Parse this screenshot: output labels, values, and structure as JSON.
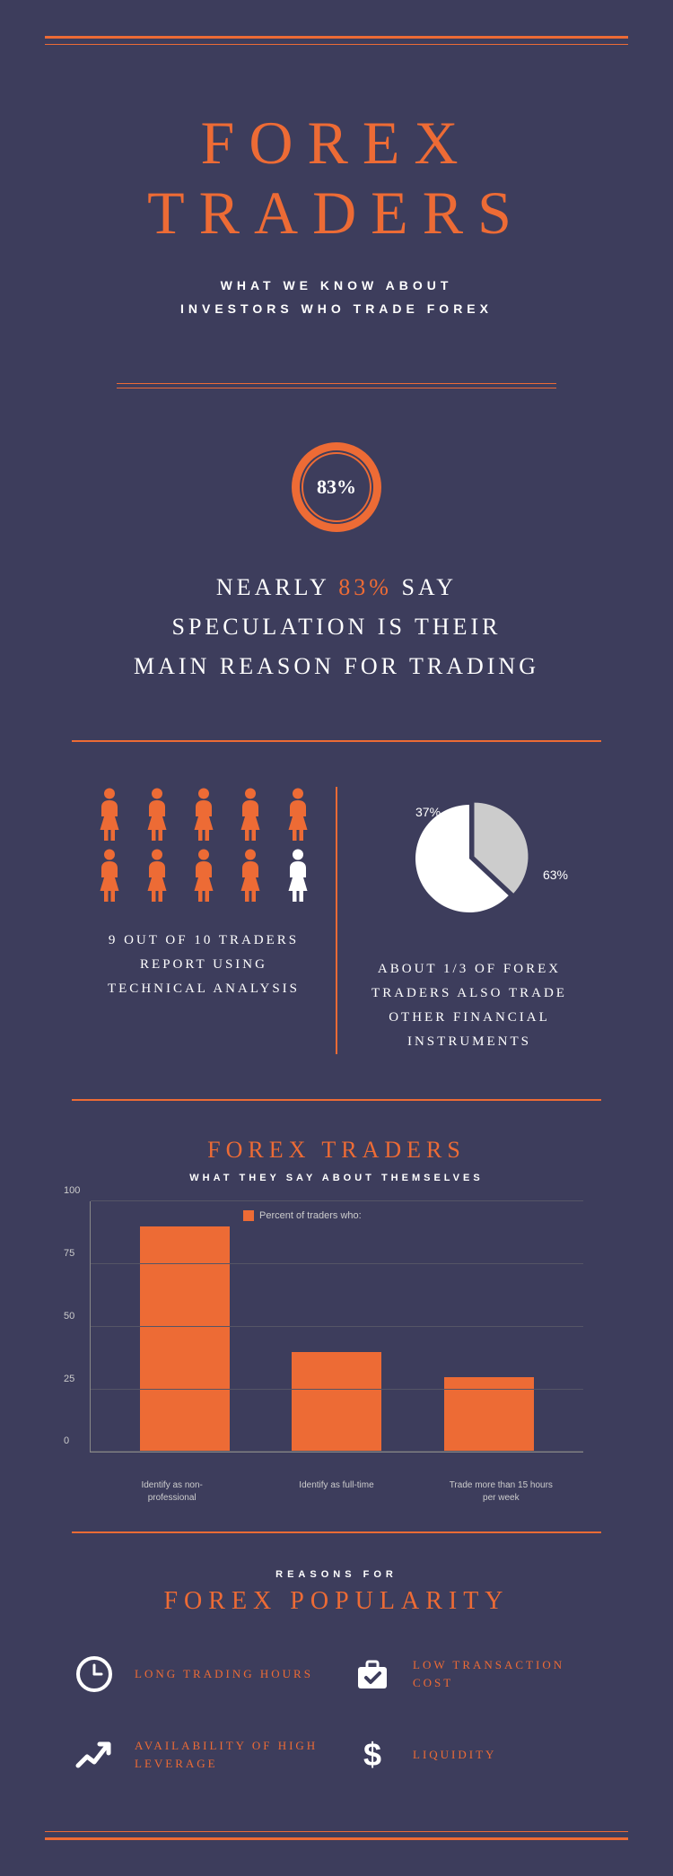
{
  "colors": {
    "background": "#3d3d5c",
    "accent": "#ed6b35",
    "text": "#ffffff",
    "muted": "#cccccc",
    "pie_light": "#cccccc",
    "pie_main": "#ffffff",
    "grid": "#555566"
  },
  "header": {
    "title": "FOREX TRADERS",
    "subtitle_line1": "WHAT WE KNOW ABOUT",
    "subtitle_line2": "INVESTORS WHO TRADE FOREX"
  },
  "stat_circle": {
    "value": "83%"
  },
  "stat1": {
    "line1_pre": "NEARLY ",
    "line1_highlight": "83%",
    "line1_post": " SAY",
    "line2": "SPECULATION IS THEIR",
    "line3": "MAIN REASON FOR TRADING"
  },
  "people": {
    "total": 10,
    "filled": 9,
    "fill_color": "#ed6b35",
    "empty_color": "#ffffff",
    "caption": "9 OUT OF 10 TRADERS REPORT USING TECHNICAL ANALYSIS"
  },
  "pie": {
    "slice1_pct": 37,
    "slice2_pct": 63,
    "slice1_label": "37%",
    "slice2_label": "63%",
    "slice1_color": "#cccccc",
    "slice2_color": "#ffffff",
    "caption": "ABOUT 1/3 OF FOREX TRADERS ALSO TRADE OTHER FINANCIAL INSTRUMENTS"
  },
  "bar_chart": {
    "title": "FOREX TRADERS",
    "subtitle": "WHAT THEY SAY ABOUT THEMSELVES",
    "legend": "Percent of traders who:",
    "ylim": [
      0,
      100
    ],
    "ytick_step": 25,
    "yticks": [
      0,
      25,
      50,
      75,
      100
    ],
    "bar_color": "#ed6b35",
    "categories": [
      "Identify as non-professional",
      "Identify as full-time",
      "Trade more than 15 hours per week"
    ],
    "values": [
      90,
      40,
      30
    ]
  },
  "popularity": {
    "reasons_label": "REASONS FOR",
    "title": "FOREX POPULARITY",
    "items": [
      {
        "icon": "clock",
        "label": "LONG TRADING HOURS"
      },
      {
        "icon": "briefcase-check",
        "label": "LOW TRANSACTION COST"
      },
      {
        "icon": "trend-up",
        "label": "AVAILABILITY OF HIGH LEVERAGE"
      },
      {
        "icon": "dollar",
        "label": "LIQUIDITY"
      }
    ]
  }
}
